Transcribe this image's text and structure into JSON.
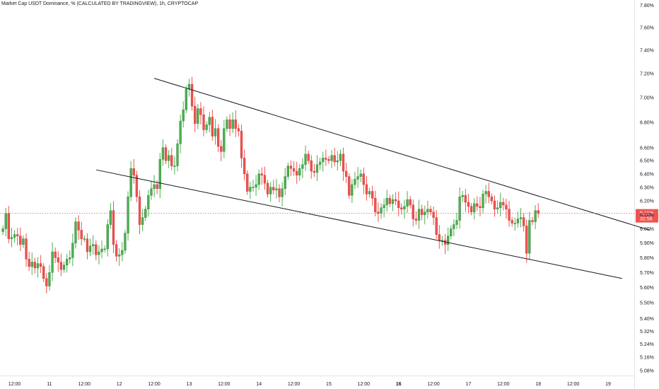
{
  "chart_data": {
    "type": "candlestick",
    "title": "Market Cap USDT Dominance, % (CALCULATED BY TRADINGVIEW), 1h, CRYPTOCAP",
    "y_unit": "%",
    "y_scale": "log",
    "ylim": [
      5.05,
      7.85
    ],
    "y_ticks": [
      "7.80%",
      "7.60%",
      "7.40%",
      "7.20%",
      "7.00%",
      "6.80%",
      "6.60%",
      "6.50%",
      "6.40%",
      "6.30%",
      "6.20%",
      "6.10%",
      "6.00%",
      "5.90%",
      "5.80%",
      "5.70%",
      "5.60%",
      "5.50%",
      "5.40%",
      "5.32%",
      "5.24%",
      "5.16%",
      "5.08%"
    ],
    "y_tick_values": [
      7.8,
      7.6,
      7.4,
      7.2,
      7.0,
      6.8,
      6.6,
      6.5,
      6.4,
      6.3,
      6.2,
      6.1,
      6.0,
      5.9,
      5.8,
      5.7,
      5.6,
      5.5,
      5.4,
      5.32,
      5.24,
      5.16,
      5.08
    ],
    "x_ticks": [
      {
        "label": "12:00",
        "hour": -12,
        "bold": false
      },
      {
        "label": "11",
        "hour": 0,
        "bold": false
      },
      {
        "label": "12:00",
        "hour": 12,
        "bold": false
      },
      {
        "label": "12",
        "hour": 24,
        "bold": false
      },
      {
        "label": "12:00",
        "hour": 36,
        "bold": false
      },
      {
        "label": "13",
        "hour": 48,
        "bold": false
      },
      {
        "label": "12:00",
        "hour": 60,
        "bold": false
      },
      {
        "label": "14",
        "hour": 72,
        "bold": false
      },
      {
        "label": "12:00",
        "hour": 84,
        "bold": false
      },
      {
        "label": "15",
        "hour": 96,
        "bold": false
      },
      {
        "label": "12:00",
        "hour": 108,
        "bold": false
      },
      {
        "label": "16",
        "hour": 120,
        "bold": true
      },
      {
        "label": "12:00",
        "hour": 132,
        "bold": false
      },
      {
        "label": "17",
        "hour": 144,
        "bold": false
      },
      {
        "label": "12:00",
        "hour": 156,
        "bold": false
      },
      {
        "label": "18",
        "hour": 168,
        "bold": false
      },
      {
        "label": "12:00",
        "hour": 180,
        "bold": false
      },
      {
        "label": "19",
        "hour": 192,
        "bold": false
      }
    ],
    "xlim_hours": [
      -17,
      201
    ],
    "last_price": {
      "label": "6.11%",
      "countdown": "32:58",
      "value": 6.11
    },
    "colors": {
      "up": "#26a69a",
      "up_body": "#4caf50",
      "down": "#ef5350",
      "line": "#131722",
      "price_line": "#ef5350",
      "grid": "#e0e3eb"
    },
    "trendlines": [
      {
        "name": "upper",
        "from": [
          1.5,
          7.16
        ],
        "to": [
          8.6,
          5.99
        ]
      },
      {
        "name": "lower",
        "from": [
          0.67,
          6.43
        ],
        "to": [
          8.2,
          5.66
        ]
      }
    ],
    "candles_close": [
      6.0,
      6.11,
      5.93,
      5.94,
      5.96,
      5.95,
      5.89,
      5.93,
      5.79,
      5.74,
      5.77,
      5.73,
      5.76,
      5.74,
      5.66,
      5.61,
      5.7,
      5.84,
      5.8,
      5.77,
      5.72,
      5.75,
      5.79,
      5.8,
      5.9,
      6.05,
      5.99,
      5.93,
      5.93,
      5.84,
      5.88,
      5.89,
      5.82,
      5.84,
      5.86,
      5.86,
      6.03,
      6.13,
      5.89,
      5.81,
      5.82,
      5.85,
      5.97,
      6.23,
      6.44,
      6.39,
      6.23,
      6.03,
      6.08,
      6.14,
      6.24,
      6.29,
      6.32,
      6.29,
      6.51,
      6.6,
      6.5,
      6.54,
      6.46,
      6.46,
      6.63,
      6.81,
      6.9,
      7.07,
      7.11,
      6.93,
      6.79,
      6.91,
      6.86,
      6.74,
      6.78,
      6.84,
      6.69,
      6.75,
      6.61,
      6.57,
      6.75,
      6.82,
      6.75,
      6.82,
      6.75,
      6.73,
      6.52,
      6.4,
      6.27,
      6.3,
      6.3,
      6.32,
      6.4,
      6.39,
      6.33,
      6.25,
      6.3,
      6.28,
      6.29,
      6.23,
      6.29,
      6.38,
      6.46,
      6.44,
      6.42,
      6.39,
      6.44,
      6.47,
      6.55,
      6.5,
      6.42,
      6.41,
      6.47,
      6.49,
      6.52,
      6.51,
      6.5,
      6.54,
      6.49,
      6.5,
      6.55,
      6.42,
      6.38,
      6.24,
      6.32,
      6.36,
      6.38,
      6.4,
      6.32,
      6.25,
      6.27,
      6.22,
      6.12,
      6.11,
      6.15,
      6.17,
      6.22,
      6.18,
      6.21,
      6.2,
      6.15,
      6.14,
      6.16,
      6.21,
      6.17,
      6.07,
      6.06,
      6.14,
      6.1,
      6.12,
      6.14,
      6.12,
      6.08,
      5.96,
      5.92,
      5.92,
      5.89,
      5.95,
      6.0,
      6.03,
      6.06,
      6.23,
      6.24,
      6.19,
      6.16,
      6.12,
      6.18,
      6.16,
      6.15,
      6.25,
      6.27,
      6.23,
      6.2,
      6.14,
      6.15,
      6.19,
      6.17,
      6.14,
      6.06,
      6.04,
      6.04,
      6.07,
      6.08,
      6.02,
      5.83,
      6.06,
      6.05,
      6.13,
      6.11
    ]
  }
}
